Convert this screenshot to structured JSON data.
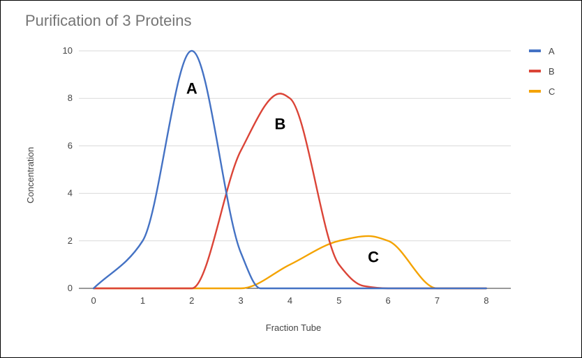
{
  "chart_data": {
    "type": "line",
    "title": "Purification of 3 Proteins",
    "xlabel": "Fraction Tube",
    "ylabel": "Concentration",
    "xlim": [
      -0.3,
      8.5
    ],
    "ylim": [
      0,
      10
    ],
    "xticks": [
      0,
      1,
      2,
      3,
      4,
      5,
      6,
      7,
      8
    ],
    "yticks": [
      0,
      2,
      4,
      6,
      8,
      10
    ],
    "grid": true,
    "smooth": true,
    "legend_position": "right",
    "series": [
      {
        "name": "A",
        "color": "#4472C4",
        "points": [
          [
            0,
            0
          ],
          [
            1,
            2
          ],
          [
            2,
            10
          ],
          [
            3,
            1.5
          ],
          [
            3.4,
            0
          ],
          [
            4,
            0
          ],
          [
            5,
            0
          ],
          [
            6,
            0
          ],
          [
            7,
            0
          ],
          [
            8,
            0
          ]
        ]
      },
      {
        "name": "B",
        "color": "#DB4437",
        "points": [
          [
            0,
            0
          ],
          [
            1,
            0
          ],
          [
            2,
            0
          ],
          [
            3,
            5.8
          ],
          [
            3.8,
            8.2
          ],
          [
            4,
            8.0
          ],
          [
            5,
            1
          ],
          [
            5.5,
            0.1
          ],
          [
            6,
            0
          ],
          [
            7,
            0
          ],
          [
            8,
            0
          ]
        ]
      },
      {
        "name": "C",
        "color": "#F4A300",
        "points": [
          [
            0,
            0
          ],
          [
            1,
            0
          ],
          [
            2,
            0
          ],
          [
            3,
            0
          ],
          [
            4,
            1
          ],
          [
            5,
            2
          ],
          [
            5.6,
            2.2
          ],
          [
            6,
            2
          ],
          [
            7,
            0
          ],
          [
            8,
            0
          ]
        ]
      }
    ],
    "annotations": [
      {
        "text": "A",
        "x": 2.0,
        "y": 8.2
      },
      {
        "text": "B",
        "x": 3.8,
        "y": 6.7
      },
      {
        "text": "C",
        "x": 5.7,
        "y": 1.1
      }
    ]
  }
}
